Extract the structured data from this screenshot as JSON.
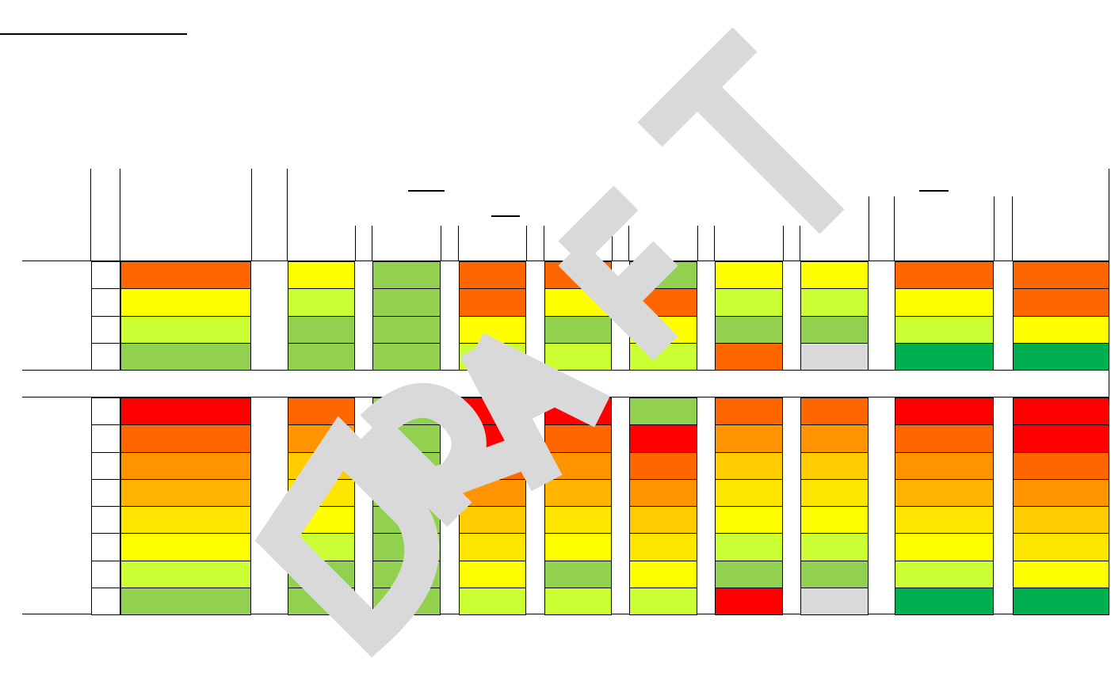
{
  "colors": {
    "red": "#ff0000",
    "orange_red": "#ff6600",
    "orange": "#ff9300",
    "amber": "#ffb400",
    "gold": "#ffcc00",
    "light_gold": "#ffe600",
    "yellow": "#ffff00",
    "lime": "#ccff33",
    "green": "#92d050",
    "dark_green": "#00b050",
    "grey": "#d9d9d9",
    "watermark": "#d9d9d9"
  },
  "watermark": {
    "text": "DRAFT"
  },
  "sections": [
    {
      "name": "upper-block",
      "rows": [
        [
          "orange_red",
          "yellow",
          "green",
          "orange_red",
          "orange_red",
          "green",
          "yellow",
          "yellow",
          "orange_red",
          "orange_red"
        ],
        [
          "yellow",
          "lime",
          "green",
          "orange_red",
          "yellow",
          "orange_red",
          "lime",
          "lime",
          "yellow",
          "orange_red"
        ],
        [
          "lime",
          "green",
          "green",
          "yellow",
          "green",
          "yellow",
          "green",
          "green",
          "lime",
          "yellow"
        ],
        [
          "green",
          "green",
          "green",
          "lime",
          "lime",
          "lime",
          "orange_red",
          "grey",
          "dark_green",
          "dark_green"
        ]
      ]
    },
    {
      "name": "lower-block",
      "rows": [
        [
          "red",
          "orange_red",
          "green",
          "red",
          "red",
          "green",
          "orange_red",
          "orange_red",
          "red",
          "red"
        ],
        [
          "orange_red",
          "orange",
          "green",
          "red",
          "orange_red",
          "red",
          "orange",
          "orange",
          "orange_red",
          "red"
        ],
        [
          "orange",
          "gold",
          "green",
          "orange_red",
          "orange",
          "orange_red",
          "gold",
          "gold",
          "orange",
          "orange_red"
        ],
        [
          "amber",
          "light_gold",
          "green",
          "orange",
          "amber",
          "orange",
          "light_gold",
          "light_gold",
          "amber",
          "orange"
        ],
        [
          "light_gold",
          "yellow",
          "green",
          "gold",
          "light_gold",
          "gold",
          "yellow",
          "yellow",
          "light_gold",
          "gold"
        ],
        [
          "yellow",
          "lime",
          "green",
          "light_gold",
          "yellow",
          "light_gold",
          "lime",
          "lime",
          "yellow",
          "light_gold"
        ],
        [
          "lime",
          "green",
          "green",
          "yellow",
          "green",
          "yellow",
          "green",
          "green",
          "lime",
          "yellow"
        ],
        [
          "green",
          "green",
          "green",
          "lime",
          "lime",
          "lime",
          "red",
          "grey",
          "dark_green",
          "dark_green"
        ]
      ]
    }
  ]
}
